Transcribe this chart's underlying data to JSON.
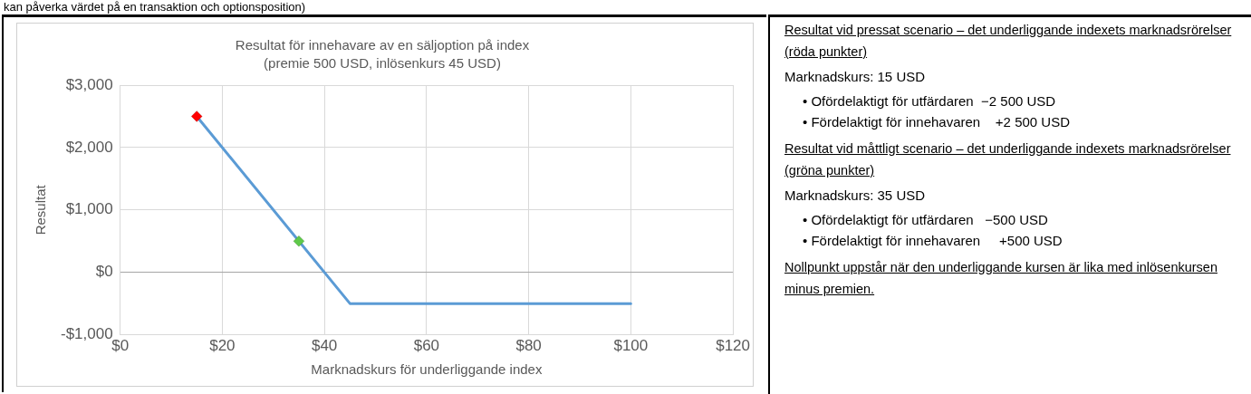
{
  "chart_data": {
    "type": "line",
    "title": "Resultat för innehavare av en säljoption på index",
    "subtitle": "(premie 500 USD, inlösenkurs 45 USD)",
    "xlabel": "Marknadskurs för underliggande index",
    "ylabel": "Resultat",
    "series": [
      {
        "color": "#5b9bd5",
        "x": [
          15,
          45,
          100
        ],
        "values": [
          2500,
          -500,
          -500
        ],
        "marker": "none"
      },
      {
        "type": "scatter",
        "color": "#ff0000",
        "x": [
          15
        ],
        "values": [
          2500
        ],
        "marker": "diamond"
      },
      {
        "type": "scatter",
        "color": "#5fc94a",
        "x": [
          35
        ],
        "values": [
          500
        ],
        "marker": "diamond"
      }
    ],
    "xlim": [
      0,
      120
    ],
    "xticks": [
      {
        "value": 0,
        "label": "$0"
      },
      {
        "value": 20,
        "label": "$20"
      },
      {
        "value": 40,
        "label": "$40"
      },
      {
        "value": 60,
        "label": "$60"
      },
      {
        "value": 80,
        "label": "$80"
      },
      {
        "value": 100,
        "label": "$100"
      },
      {
        "value": 120,
        "label": "$120"
      }
    ],
    "ylim": [
      -1000,
      3000
    ],
    "yticks": [
      {
        "value": -1000,
        "label": "-$1,000"
      },
      {
        "value": 0,
        "label": "$0"
      },
      {
        "value": 1000,
        "label": "$1,000"
      },
      {
        "value": 2000,
        "label": "$2,000"
      },
      {
        "value": 3000,
        "label": "$3,000"
      }
    ],
    "grid": true,
    "legend": false,
    "annotations": [
      "kan påverka värdet på en transaktion och optionsposition)",
      "Resultat vid pressat scenario – det underliggande indexets marknadsrörelser (röda punkter)",
      "Marknadskurs: 15 USD",
      "• Ofördelaktigt för utfärdaren  −2 500 USD",
      "• Fördelaktigt för innehavaren    +2 500 USD",
      "Resultat vid måttligt scenario – det underliggande indexets marknadsrörelser (gröna punkter)",
      "Marknadskurs: 35 USD",
      "• Ofördelaktigt för utfärdaren   −500 USD",
      "• Fördelaktigt för innehavaren     +500 USD",
      "Nollpunkt uppstår när den underliggande kursen är lika med inlösenkursen minus premien."
    ]
  }
}
